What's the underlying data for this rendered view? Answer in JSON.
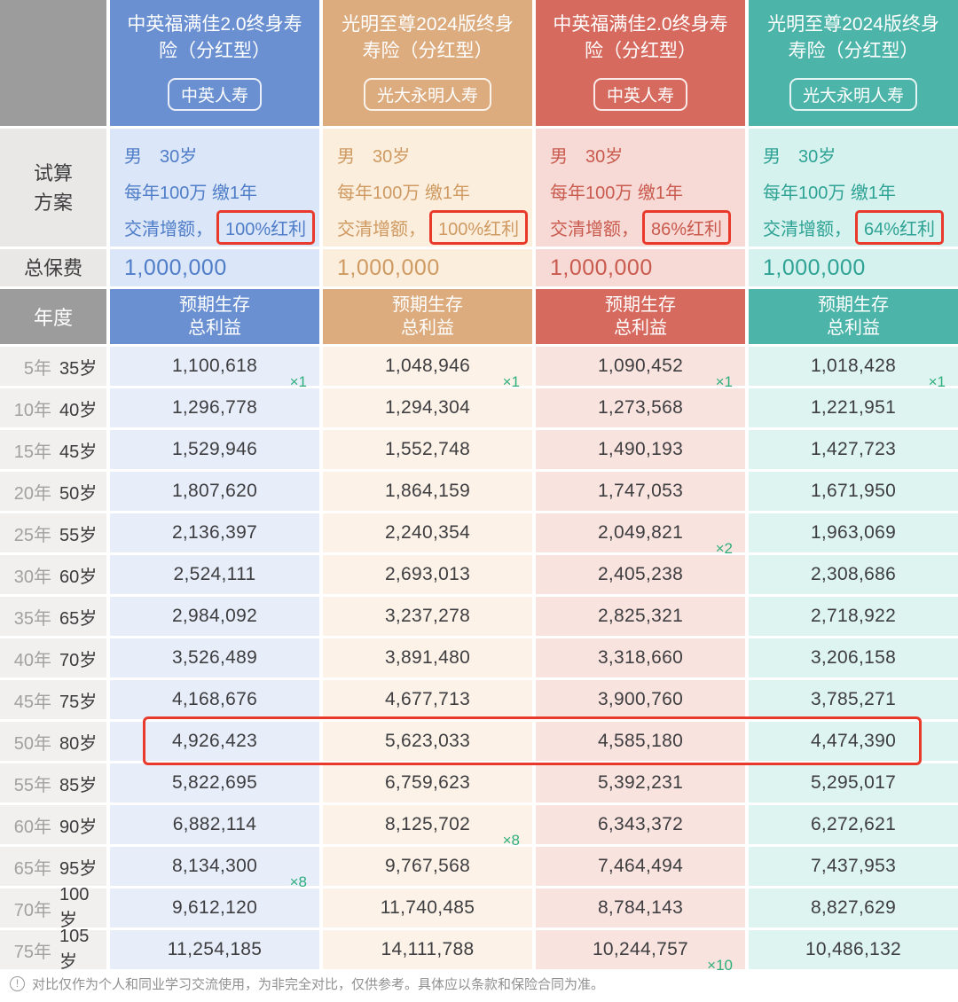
{
  "left_header": {
    "plan_line1": "试算",
    "plan_line2": "方案",
    "premium_label": "总保费",
    "year_label": "年度"
  },
  "chart_data": {
    "type": "table",
    "benefit_header": [
      "预期生存",
      "总利益"
    ],
    "row_labels": [
      [
        "5年",
        "35岁"
      ],
      [
        "10年",
        "40岁"
      ],
      [
        "15年",
        "45岁"
      ],
      [
        "20年",
        "50岁"
      ],
      [
        "25年",
        "55岁"
      ],
      [
        "30年",
        "60岁"
      ],
      [
        "35年",
        "65岁"
      ],
      [
        "40年",
        "70岁"
      ],
      [
        "45年",
        "75岁"
      ],
      [
        "50年",
        "80岁"
      ],
      [
        "55年",
        "85岁"
      ],
      [
        "60年",
        "90岁"
      ],
      [
        "65年",
        "95岁"
      ],
      [
        "70年",
        "100岁"
      ],
      [
        "75年",
        "105岁"
      ]
    ],
    "highlight_row_index": 9,
    "products": [
      {
        "name": "中英福满佳2.0终身寿险（分红型）",
        "company": "中英人寿",
        "plan": {
          "gender_age": "男　30岁",
          "payment": "每年100万 缴1年",
          "paidup_prefix": "交清增额，",
          "dividend": "100%红利"
        },
        "total_premium": "1,000,000",
        "values": [
          "1,100,618",
          "1,296,778",
          "1,529,946",
          "1,807,620",
          "2,136,397",
          "2,524,111",
          "2,984,092",
          "3,526,489",
          "4,168,676",
          "4,926,423",
          "5,822,695",
          "6,882,114",
          "8,134,300",
          "9,612,120",
          "11,254,185"
        ],
        "markers": {
          "0": "×1",
          "12": "×8"
        },
        "theme": {
          "header": "#6a90d2",
          "panel": "#dbe6f8",
          "row": "#e7edf9",
          "text": "#4f7dc8"
        }
      },
      {
        "name": "光明至尊2024版终身寿险（分红型）",
        "company": "光大永明人寿",
        "plan": {
          "gender_age": "男　30岁",
          "payment": "每年100万 缴1年",
          "paidup_prefix": "交清增额，",
          "dividend": "100%红利"
        },
        "total_premium": "1,000,000",
        "values": [
          "1,048,946",
          "1,294,304",
          "1,552,748",
          "1,864,159",
          "2,240,354",
          "2,693,013",
          "3,237,278",
          "3,891,480",
          "4,677,713",
          "5,623,033",
          "6,759,623",
          "8,125,702",
          "9,767,568",
          "11,740,485",
          "14,111,788"
        ],
        "markers": {
          "0": "×1",
          "11": "×8"
        },
        "theme": {
          "header": "#dcab7e",
          "panel": "#fbeedd",
          "row": "#fcf2e8",
          "text": "#cf9a62"
        }
      },
      {
        "name": "中英福满佳2.0终身寿险（分红型）",
        "company": "中英人寿",
        "plan": {
          "gender_age": "男　30岁",
          "payment": "每年100万 缴1年",
          "paidup_prefix": "交清增额，",
          "dividend": "86%红利"
        },
        "total_premium": "1,000,000",
        "values": [
          "1,090,452",
          "1,273,568",
          "1,490,193",
          "1,747,053",
          "2,049,821",
          "2,405,238",
          "2,825,321",
          "3,318,660",
          "3,900,760",
          "4,585,180",
          "5,392,231",
          "6,343,372",
          "7,464,494",
          "8,784,143",
          "10,244,757"
        ],
        "markers": {
          "0": "×1",
          "4": "×2",
          "14": "×10"
        },
        "theme": {
          "header": "#d76a5e",
          "panel": "#f7d9d5",
          "row": "#f9e3df",
          "text": "#c95a4e"
        }
      },
      {
        "name": "光明至尊2024版终身寿险（分红型）",
        "company": "光大永明人寿",
        "plan": {
          "gender_age": "男　30岁",
          "payment": "每年100万 缴1年",
          "paidup_prefix": "交清增额，",
          "dividend": "64%红利"
        },
        "total_premium": "1,000,000",
        "values": [
          "1,018,428",
          "1,221,951",
          "1,427,723",
          "1,671,950",
          "1,963,069",
          "2,308,686",
          "2,718,922",
          "3,206,158",
          "3,785,271",
          "4,474,390",
          "5,295,017",
          "6,272,621",
          "7,437,953",
          "8,827,629",
          "10,486,132"
        ],
        "markers": {
          "0": "×1"
        },
        "theme": {
          "header": "#4cb4a8",
          "panel": "#d5f2ee",
          "row": "#def4f1",
          "text": "#2ea294"
        }
      }
    ]
  },
  "annotation_color": "#e8392b",
  "marker_color": "#2fae7d",
  "footer": {
    "note": "对比仅作为个人和同业学习交流使用，为非完全对比，仅供参考。具体应以条款和保险合同为准。"
  }
}
